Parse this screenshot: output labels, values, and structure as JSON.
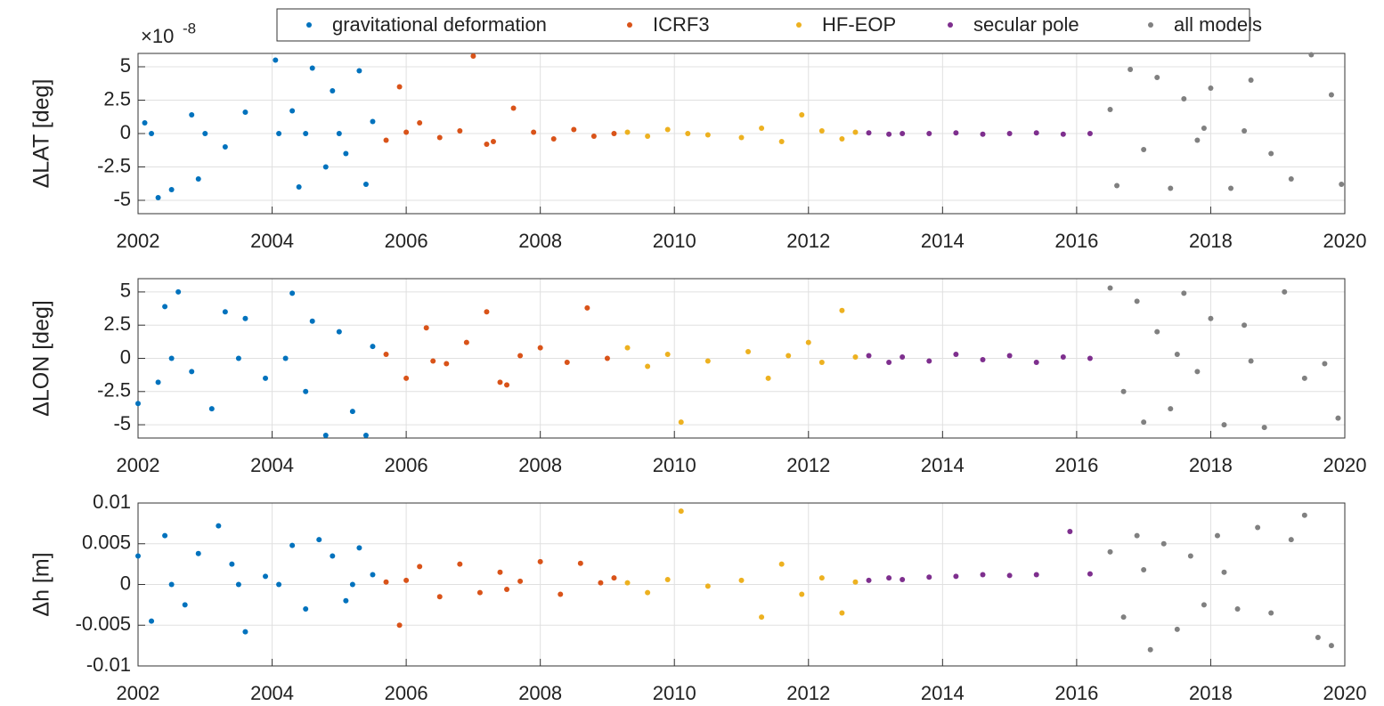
{
  "chart_data": [
    {
      "type": "scatter",
      "ylabel": "ΔLAT [deg]",
      "y_multiplier": {
        "base": "×10",
        "exponent": "-8"
      },
      "xlim": [
        2002,
        2020
      ],
      "xticks": [
        2002,
        2004,
        2006,
        2008,
        2010,
        2012,
        2014,
        2016,
        2018,
        2020
      ],
      "ylim": [
        -6,
        6
      ],
      "yticks": [
        -5,
        -2.5,
        0,
        2.5,
        5
      ],
      "grid": true,
      "legend": "top",
      "series": [
        {
          "name": "gravitational deformation",
          "color": "#0072bd",
          "x": [
            2002.1,
            2002.3,
            2002.5,
            2002.8,
            2002.9,
            2003.3,
            2003.6,
            2004.05,
            2004.1,
            2004.4,
            2004.6,
            2004.8,
            2004.9,
            2005.1,
            2005.3,
            2005.4,
            2002.2,
            2003.0,
            2004.5,
            2005.0,
            2005.5,
            2004.3
          ],
          "values": [
            0.8,
            -4.8,
            -4.2,
            1.4,
            -3.4,
            -1.0,
            1.6,
            5.5,
            0,
            -4.0,
            4.9,
            -2.5,
            3.2,
            -1.5,
            4.7,
            -3.8,
            0,
            0,
            0,
            0,
            0.9,
            1.7
          ]
        },
        {
          "name": "ICRF3",
          "color": "#d95319",
          "x": [
            2005.7,
            2005.9,
            2006.2,
            2006.5,
            2006.8,
            2007.0,
            2007.3,
            2007.6,
            2007.9,
            2008.2,
            2008.5,
            2008.8,
            2009.1,
            2006.0,
            2007.2
          ],
          "values": [
            -0.5,
            3.5,
            0.8,
            -0.3,
            0.2,
            5.8,
            -0.6,
            1.9,
            0.1,
            -0.4,
            0.3,
            -0.2,
            0,
            0.1,
            -0.8
          ]
        },
        {
          "name": "HF-EOP",
          "color": "#edb120",
          "x": [
            2009.3,
            2009.6,
            2009.9,
            2010.2,
            2010.5,
            2011.0,
            2011.3,
            2011.6,
            2011.9,
            2012.2,
            2012.5,
            2012.7
          ],
          "values": [
            0.1,
            -0.2,
            0.3,
            0,
            -0.1,
            -0.3,
            0.4,
            -0.6,
            1.4,
            0.2,
            -0.4,
            0.1
          ]
        },
        {
          "name": "secular pole",
          "color": "#7e2f8e",
          "x": [
            2012.9,
            2013.2,
            2013.4,
            2013.8,
            2014.2,
            2014.6,
            2015.0,
            2015.4,
            2015.8,
            2016.2
          ],
          "values": [
            0.05,
            -0.05,
            0,
            0,
            0.05,
            -0.05,
            0,
            0.05,
            -0.05,
            0
          ]
        },
        {
          "name": "all models",
          "color": "#808080",
          "x": [
            2016.5,
            2016.6,
            2016.8,
            2017.0,
            2017.2,
            2017.4,
            2017.6,
            2017.8,
            2018.0,
            2018.3,
            2018.6,
            2018.9,
            2019.2,
            2019.5,
            2019.8,
            2019.95,
            2017.9,
            2018.5
          ],
          "values": [
            1.8,
            -3.9,
            4.8,
            -1.2,
            4.2,
            -4.1,
            2.6,
            -0.5,
            3.4,
            -4.1,
            4.0,
            -1.5,
            -3.4,
            5.9,
            2.9,
            -3.8,
            0.4,
            0.2
          ]
        }
      ]
    },
    {
      "type": "scatter",
      "ylabel": "ΔLON [deg]",
      "xlim": [
        2002,
        2020
      ],
      "xticks": [
        2002,
        2004,
        2006,
        2008,
        2010,
        2012,
        2014,
        2016,
        2018,
        2020
      ],
      "ylim": [
        -6,
        6
      ],
      "yticks": [
        -5,
        -2.5,
        0,
        2.5,
        5
      ],
      "grid": true,
      "series": [
        {
          "color": "#0072bd",
          "x": [
            2002.0,
            2002.3,
            2002.4,
            2002.6,
            2002.8,
            2003.1,
            2003.3,
            2003.6,
            2003.9,
            2004.3,
            2004.5,
            2004.6,
            2004.8,
            2005.0,
            2005.2,
            2005.4,
            2002.5,
            2003.5,
            2004.2,
            2005.5
          ],
          "values": [
            -3.4,
            -1.8,
            3.9,
            5.0,
            -1.0,
            -3.8,
            3.5,
            3.0,
            -1.5,
            4.9,
            -2.5,
            2.8,
            -5.8,
            2.0,
            -4.0,
            -5.8,
            0,
            0,
            0,
            0.9
          ]
        },
        {
          "color": "#d95319",
          "x": [
            2005.7,
            2006.0,
            2006.3,
            2006.6,
            2006.9,
            2007.2,
            2007.4,
            2007.7,
            2008.0,
            2008.4,
            2008.7,
            2009.0,
            2006.4,
            2007.5
          ],
          "values": [
            0.3,
            -1.5,
            2.3,
            -0.4,
            1.2,
            3.5,
            -1.8,
            0.2,
            0.8,
            -0.3,
            3.8,
            0,
            -0.2,
            -2.0
          ]
        },
        {
          "color": "#edb120",
          "x": [
            2009.3,
            2009.6,
            2009.9,
            2010.1,
            2010.5,
            2011.1,
            2011.4,
            2011.7,
            2012.0,
            2012.2,
            2012.5,
            2012.7
          ],
          "values": [
            0.8,
            -0.6,
            0.3,
            -4.8,
            -0.2,
            0.5,
            -1.5,
            0.2,
            1.2,
            -0.3,
            3.6,
            0.1
          ]
        },
        {
          "color": "#7e2f8e",
          "x": [
            2012.9,
            2013.2,
            2013.4,
            2013.8,
            2014.2,
            2014.6,
            2015.0,
            2015.4,
            2015.8,
            2016.2
          ],
          "values": [
            0.2,
            -0.3,
            0.1,
            -0.2,
            0.3,
            -0.1,
            0.2,
            -0.3,
            0.1,
            0
          ]
        },
        {
          "color": "#808080",
          "x": [
            2016.5,
            2016.7,
            2016.9,
            2017.0,
            2017.2,
            2017.4,
            2017.6,
            2017.8,
            2018.0,
            2018.2,
            2018.5,
            2018.8,
            2019.1,
            2019.4,
            2019.7,
            2019.9,
            2017.5,
            2018.6
          ],
          "values": [
            5.3,
            -2.5,
            4.3,
            -4.8,
            2.0,
            -3.8,
            4.9,
            -1.0,
            3.0,
            -5.0,
            2.5,
            -5.2,
            5.0,
            -1.5,
            -0.4,
            -4.5,
            0.3,
            -0.2
          ]
        }
      ]
    },
    {
      "type": "scatter",
      "ylabel": "Δh [m]",
      "xlim": [
        2002,
        2020
      ],
      "xticks": [
        2002,
        2004,
        2006,
        2008,
        2010,
        2012,
        2014,
        2016,
        2018,
        2020
      ],
      "ylim": [
        -0.01,
        0.01
      ],
      "yticks": [
        -0.01,
        -0.005,
        0,
        0.005,
        0.01
      ],
      "grid": true,
      "series": [
        {
          "color": "#0072bd",
          "x": [
            2002.0,
            2002.2,
            2002.4,
            2002.7,
            2002.9,
            2003.2,
            2003.4,
            2003.6,
            2003.9,
            2004.3,
            2004.5,
            2004.7,
            2004.9,
            2005.1,
            2005.3,
            2005.5,
            2002.5,
            2003.5,
            2004.1,
            2005.2
          ],
          "values": [
            0.0035,
            -0.0045,
            0.006,
            -0.0025,
            0.0038,
            0.0072,
            0.0025,
            -0.0058,
            0.001,
            0.0048,
            -0.003,
            0.0055,
            0.0035,
            -0.002,
            0.0045,
            0.0012,
            0,
            0,
            0,
            0
          ]
        },
        {
          "color": "#d95319",
          "x": [
            2005.7,
            2005.9,
            2006.2,
            2006.5,
            2006.8,
            2007.1,
            2007.4,
            2007.7,
            2008.0,
            2008.3,
            2008.6,
            2008.9,
            2009.1,
            2006.0,
            2007.5
          ],
          "values": [
            0.0003,
            -0.005,
            0.0022,
            -0.0015,
            0.0025,
            -0.001,
            0.0015,
            0.0004,
            0.0028,
            -0.0012,
            0.0026,
            0.0002,
            0.0008,
            0.0005,
            -0.0006
          ]
        },
        {
          "color": "#edb120",
          "x": [
            2009.3,
            2009.6,
            2009.9,
            2010.1,
            2010.5,
            2011.0,
            2011.3,
            2011.6,
            2011.9,
            2012.2,
            2012.5,
            2012.7
          ],
          "values": [
            0.0002,
            -0.001,
            0.0006,
            0.009,
            -0.0002,
            0.0005,
            -0.004,
            0.0025,
            -0.0012,
            0.0008,
            -0.0035,
            0.0003
          ]
        },
        {
          "color": "#7e2f8e",
          "x": [
            2012.9,
            2013.2,
            2013.4,
            2013.8,
            2014.2,
            2014.6,
            2015.0,
            2015.4,
            2015.9,
            2016.2
          ],
          "values": [
            0.0005,
            0.0008,
            0.0006,
            0.0009,
            0.001,
            0.0012,
            0.0011,
            0.0012,
            0.0065,
            0.0013
          ]
        },
        {
          "color": "#808080",
          "x": [
            2016.5,
            2016.7,
            2016.9,
            2017.1,
            2017.3,
            2017.5,
            2017.7,
            2017.9,
            2018.1,
            2018.4,
            2018.7,
            2018.9,
            2019.2,
            2019.4,
            2019.6,
            2019.8,
            2017.0,
            2018.2
          ],
          "values": [
            0.004,
            -0.004,
            0.006,
            -0.008,
            0.005,
            -0.0055,
            0.0035,
            -0.0025,
            0.006,
            -0.003,
            0.007,
            -0.0035,
            0.0055,
            0.0085,
            -0.0065,
            -0.0075,
            0.0018,
            0.0015
          ]
        }
      ]
    }
  ]
}
